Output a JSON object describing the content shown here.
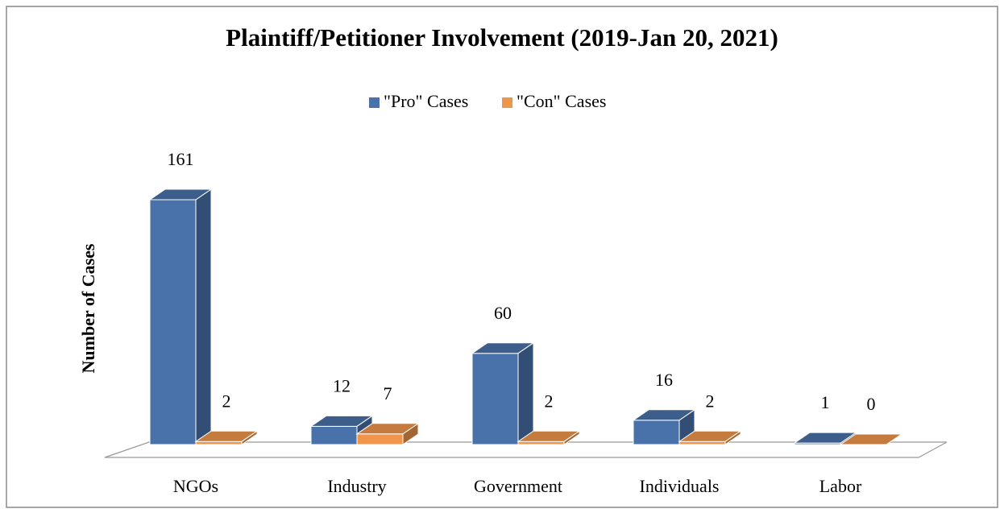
{
  "chart_data": {
    "type": "bar3d",
    "title": "Plaintiff/Petitioner Involvement (2019-Jan 20, 2021)",
    "y_label": "Number of Cases",
    "categories": [
      "NGOs",
      "Industry",
      "Government",
      "Individuals",
      "Labor"
    ],
    "series": [
      {
        "name": "\"Pro\" Cases",
        "color": "#4a72aa",
        "values": [
          161,
          12,
          60,
          16,
          1
        ]
      },
      {
        "name": "\"Con\" Cases",
        "color": "#f0964a",
        "values": [
          2,
          7,
          2,
          2,
          0
        ]
      }
    ],
    "legend": "top"
  }
}
